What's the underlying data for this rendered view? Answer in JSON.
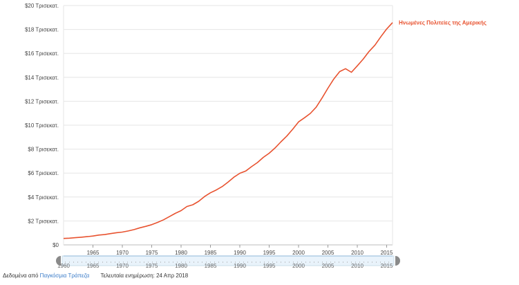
{
  "chart_data": {
    "type": "line",
    "title": "",
    "xlabel": "",
    "ylabel": "",
    "xlim": [
      1960,
      2016
    ],
    "ylim": [
      0,
      20
    ],
    "grid": true,
    "y_tick_labels": [
      "$0",
      "$2 Τρισεκατ.",
      "$4 Τρισεκατ.",
      "$6 Τρισεκατ.",
      "$8 Τρισεκατ.",
      "$10 Τρισεκατ.",
      "$12 Τρισεκατ.",
      "$14 Τρισεκατ.",
      "$16 Τρισεκατ.",
      "$18 Τρισεκατ.",
      "$20 Τρισεκατ."
    ],
    "x_tick_labels": [
      "1965",
      "1970",
      "1975",
      "1980",
      "1985",
      "1990",
      "1995",
      "2000",
      "2005",
      "2010",
      "2015"
    ],
    "series": [
      {
        "name": "Ηνωμένες Πολιτείες της Αμερικής",
        "color": "#e8522f",
        "x": [
          1960,
          1961,
          1962,
          1963,
          1964,
          1965,
          1966,
          1967,
          1968,
          1969,
          1970,
          1971,
          1972,
          1973,
          1974,
          1975,
          1976,
          1977,
          1978,
          1979,
          1980,
          1981,
          1982,
          1983,
          1984,
          1985,
          1986,
          1987,
          1988,
          1989,
          1990,
          1991,
          1992,
          1993,
          1994,
          1995,
          1996,
          1997,
          1998,
          1999,
          2000,
          2001,
          2002,
          2003,
          2004,
          2005,
          2006,
          2007,
          2008,
          2009,
          2010,
          2011,
          2012,
          2013,
          2014,
          2015,
          2016
        ],
        "y": [
          0.54,
          0.56,
          0.6,
          0.64,
          0.69,
          0.74,
          0.82,
          0.86,
          0.94,
          1.02,
          1.07,
          1.16,
          1.28,
          1.43,
          1.55,
          1.69,
          1.88,
          2.09,
          2.36,
          2.63,
          2.86,
          3.21,
          3.35,
          3.64,
          4.04,
          4.35,
          4.59,
          4.87,
          5.25,
          5.66,
          5.98,
          6.17,
          6.54,
          6.88,
          7.31,
          7.66,
          8.1,
          8.61,
          9.09,
          9.66,
          10.28,
          10.62,
          10.98,
          11.51,
          12.27,
          13.09,
          13.86,
          14.48,
          14.72,
          14.42,
          14.96,
          15.52,
          16.16,
          16.69,
          17.39,
          18.04,
          18.57
        ]
      }
    ]
  },
  "slider": {
    "labels": [
      "1960",
      "1965",
      "1970",
      "1975",
      "1980",
      "1985",
      "1990",
      "1995",
      "2000",
      "2005",
      "2010",
      "2015"
    ]
  },
  "footer": {
    "source_prefix": "Δεδομένα από",
    "source_name": "Παγκόσμια Τράπεζα",
    "updated": "Τελευταία ενημέρωση: 24 Απρ 2018"
  }
}
